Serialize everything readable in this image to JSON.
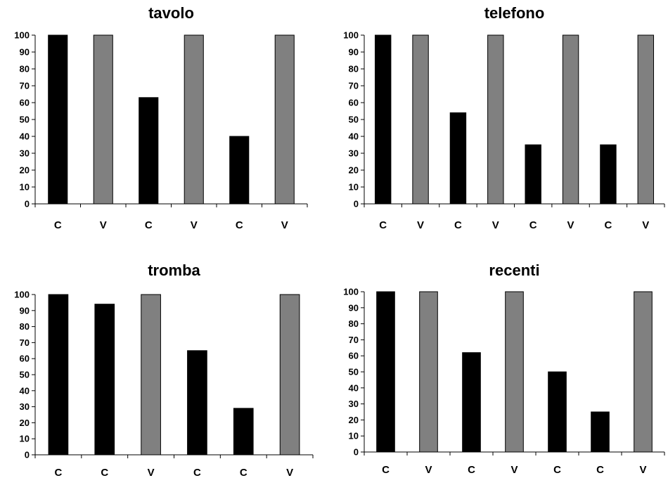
{
  "chart_data": [
    {
      "type": "bar",
      "title": "tavolo",
      "categories": [
        "C",
        "V",
        "C",
        "V",
        "C",
        "V"
      ],
      "values": [
        100,
        100,
        63,
        100,
        40,
        100
      ],
      "ylim": [
        0,
        100
      ],
      "yticks": [
        0,
        10,
        20,
        30,
        40,
        50,
        60,
        70,
        80,
        90,
        100
      ],
      "colors": {
        "C": "#000000",
        "V": "#808080"
      },
      "grid": false,
      "legend": "none"
    },
    {
      "type": "bar",
      "title": "telefono",
      "categories": [
        "C",
        "V",
        "C",
        "V",
        "C",
        "V",
        "C",
        "V"
      ],
      "values": [
        100,
        100,
        54,
        100,
        35,
        100,
        35,
        100
      ],
      "ylim": [
        0,
        100
      ],
      "yticks": [
        0,
        10,
        20,
        30,
        40,
        50,
        60,
        70,
        80,
        90,
        100
      ],
      "colors": {
        "C": "#000000",
        "V": "#808080"
      },
      "grid": false,
      "legend": "none"
    },
    {
      "type": "bar",
      "title": "tromba",
      "categories": [
        "C",
        "C",
        "V",
        "C",
        "C",
        "V"
      ],
      "values": [
        100,
        94,
        100,
        65,
        29,
        100
      ],
      "ylim": [
        0,
        100
      ],
      "yticks": [
        0,
        10,
        20,
        30,
        40,
        50,
        60,
        70,
        80,
        90,
        100
      ],
      "colors": {
        "C": "#000000",
        "V": "#808080"
      },
      "grid": false,
      "legend": "none"
    },
    {
      "type": "bar",
      "title": "recenti",
      "categories": [
        "C",
        "V",
        "C",
        "V",
        "C",
        "C",
        "V"
      ],
      "values": [
        100,
        100,
        62,
        100,
        50,
        25,
        100
      ],
      "ylim": [
        0,
        100
      ],
      "yticks": [
        0,
        10,
        20,
        30,
        40,
        50,
        60,
        70,
        80,
        90,
        100
      ],
      "colors": {
        "C": "#000000",
        "V": "#808080"
      },
      "grid": false,
      "legend": "none"
    }
  ]
}
